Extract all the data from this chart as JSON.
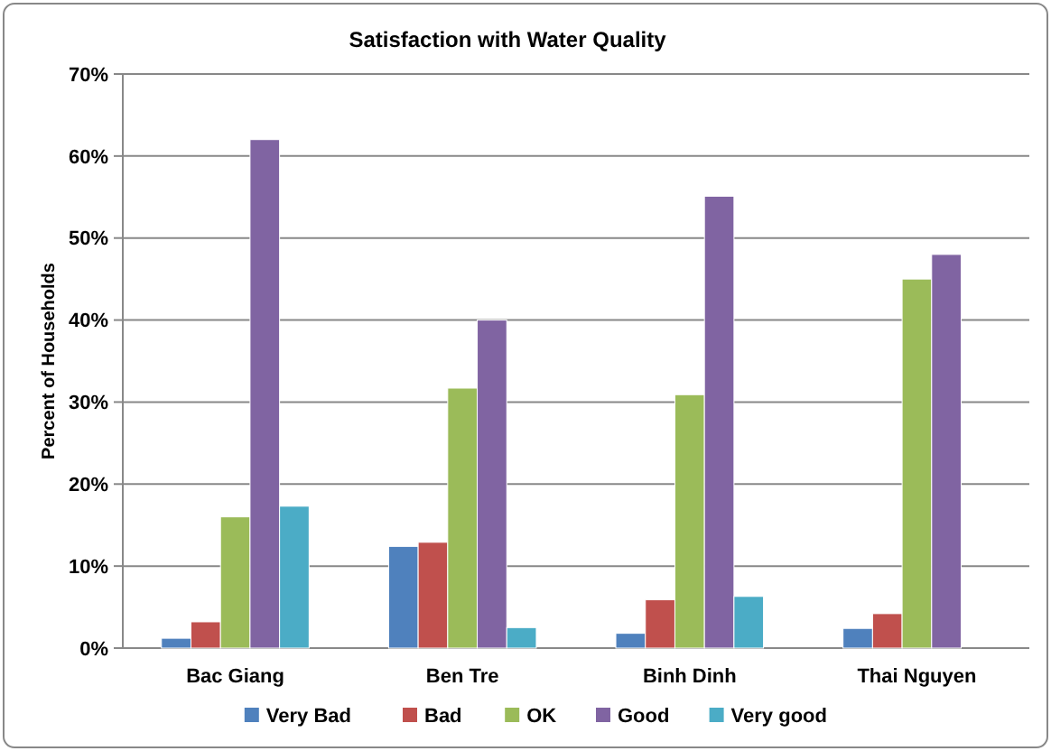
{
  "chart_data": {
    "type": "bar",
    "title": "Satisfaction with Water Quality",
    "ylabel": "Percent of Households",
    "categories": [
      "Bac Giang",
      "Ben Tre",
      "Binh Dinh",
      "Thai Nguyen"
    ],
    "series": [
      {
        "name": "Very Bad",
        "color": "#4f81bd",
        "values": [
          1.2,
          12.4,
          1.8,
          2.4
        ]
      },
      {
        "name": "Bad",
        "color": "#c0504d",
        "values": [
          3.2,
          12.9,
          5.9,
          4.2
        ]
      },
      {
        "name": "OK",
        "color": "#9bbb59",
        "values": [
          16,
          31.7,
          30.9,
          45
        ]
      },
      {
        "name": "Good",
        "color": "#8064a2",
        "values": [
          62,
          40,
          55.1,
          48
        ]
      },
      {
        "name": "Very good",
        "color": "#4bacc6",
        "values": [
          17.3,
          2.5,
          6.3,
          0
        ]
      }
    ],
    "ylim": [
      0,
      70
    ],
    "yticks": [
      {
        "value": 0,
        "label": "0%"
      },
      {
        "value": 10,
        "label": "10%"
      },
      {
        "value": 20,
        "label": "20%"
      },
      {
        "value": 30,
        "label": "30%"
      },
      {
        "value": 40,
        "label": "40%"
      },
      {
        "value": 50,
        "label": "50%"
      },
      {
        "value": 60,
        "label": "60%"
      },
      {
        "value": 70,
        "label": "70%"
      }
    ],
    "grid": "y",
    "legend": "bottom"
  }
}
